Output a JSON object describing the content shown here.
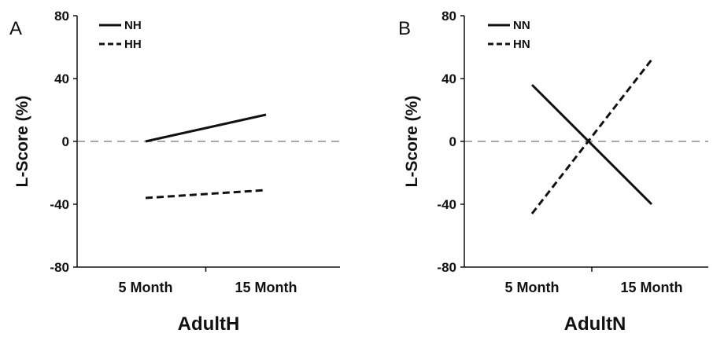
{
  "chart_data": [
    {
      "type": "line",
      "panel_label": "A",
      "categories": [
        "5 Month",
        "15 Month"
      ],
      "series": [
        {
          "name": "NH",
          "values": [
            0,
            17
          ],
          "style": "solid"
        },
        {
          "name": "HH",
          "values": [
            -36,
            -31
          ],
          "style": "dashed"
        }
      ],
      "xlabel": "AdultH",
      "ylabel": "L-Score (%)",
      "ylim": [
        -80,
        80
      ],
      "yticks": [
        80,
        40,
        0,
        -40,
        -80
      ],
      "reference_line": 0,
      "legend": "top-left",
      "grid": false
    },
    {
      "type": "line",
      "panel_label": "B",
      "categories": [
        "5 Month",
        "15 Month"
      ],
      "series": [
        {
          "name": "NN",
          "values": [
            36,
            -40
          ],
          "style": "solid"
        },
        {
          "name": "HN",
          "values": [
            -46,
            52
          ],
          "style": "dashed"
        }
      ],
      "xlabel": "AdultN",
      "ylabel": "L-Score (%)",
      "ylim": [
        -80,
        80
      ],
      "yticks": [
        80,
        40,
        0,
        -40,
        -80
      ],
      "reference_line": 0,
      "legend": "top-left",
      "grid": false
    }
  ],
  "colors": {
    "line": "#111111",
    "reference": "#a8a8a8"
  }
}
